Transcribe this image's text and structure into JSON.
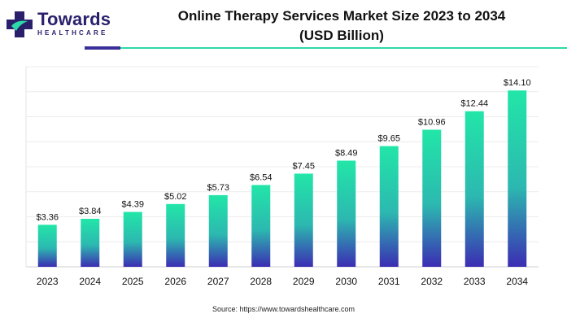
{
  "brand": {
    "name": "Towards",
    "tagline": "HEALTHCARE",
    "colors": {
      "navy": "#2a1f6b",
      "teal": "#2ed9a8",
      "purple": "#3b2f9a"
    }
  },
  "header": {
    "title_line1": "Online Therapy Services Market Size 2023 to 2034",
    "title_line2": "(USD Billion)"
  },
  "footer": {
    "source": "Source: https://www.towardshealthcare.com"
  },
  "chart_data": {
    "type": "bar",
    "title": "Online Therapy Services Market Size 2023 to 2034 (USD Billion)",
    "categories": [
      "2023",
      "2024",
      "2025",
      "2026",
      "2027",
      "2028",
      "2029",
      "2030",
      "2031",
      "2032",
      "2033",
      "2034"
    ],
    "values": [
      3.36,
      3.84,
      4.39,
      5.02,
      5.73,
      6.54,
      7.45,
      8.49,
      9.65,
      10.96,
      12.44,
      14.1
    ],
    "data_labels": [
      "$3.36",
      "$3.84",
      "$4.39",
      "$5.02",
      "$5.73",
      "$6.54",
      "$7.45",
      "$8.49",
      "$9.65",
      "$10.96",
      "$12.44",
      "$14.10"
    ],
    "xlabel": "",
    "ylabel": "",
    "ylim": [
      0,
      16
    ],
    "grid": true,
    "legend": "none",
    "bar_gradient": {
      "top": "#22e6a8",
      "bottom": "#3b2db3"
    }
  }
}
